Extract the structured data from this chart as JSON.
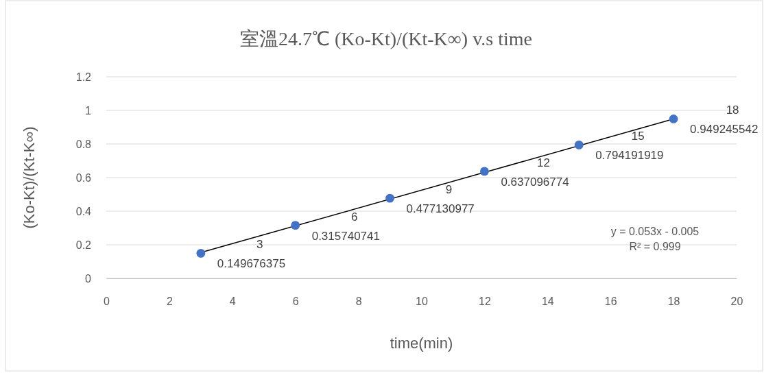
{
  "chart_data": {
    "type": "scatter",
    "title": "室溫24.7℃ (Ko-Kt)/(Kt-K∞) v.s time",
    "xlabel": "time(min)",
    "ylabel": "(Ko-Kt)/(Kt-K∞)",
    "x": [
      3,
      6,
      9,
      12,
      15,
      18
    ],
    "series": [
      {
        "color": "#4472c4",
        "values": [
          0.149676375,
          0.315740741,
          0.477130977,
          0.637096774,
          0.794191919,
          0.949245542
        ],
        "value_labels": [
          "0.149676375",
          "0.315740741",
          "0.477130977",
          "0.637096774",
          "0.794191919",
          "0.949245542"
        ]
      },
      {
        "type": "line",
        "color": "#000000",
        "marker": "none",
        "x": [
          3,
          18
        ],
        "values": [
          0.154,
          0.949
        ]
      }
    ],
    "marker": "circle",
    "grid": "y",
    "xlim": [
      0,
      20
    ],
    "xticks": [
      0,
      2,
      4,
      6,
      8,
      10,
      12,
      14,
      16,
      18,
      20
    ],
    "ylim": [
      0,
      1.2
    ],
    "yticks": [
      0,
      0.2,
      0.4,
      0.6,
      0.8,
      1,
      1.2
    ],
    "annotations": [
      "y = 0.053x - 0.005",
      "R² = 0.999",
      "3",
      "6",
      "9",
      "12",
      "15",
      "18"
    ]
  }
}
